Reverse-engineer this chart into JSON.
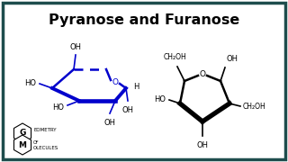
{
  "title": "Pyranose and Furanose",
  "title_fontsize": 11.5,
  "bg_color": "#ffffff",
  "border_color": "#1e4d4d",
  "text_color": "#000000",
  "pyranose_color": "#0000cc",
  "furanose_color": "#000000",
  "logo_g": "G",
  "logo_m": "M",
  "logo_eometry": "EOMETRY",
  "logo_olecules": "OLECULES",
  "logo_of": "OF",
  "figw": 3.2,
  "figh": 1.8,
  "dpi": 100
}
